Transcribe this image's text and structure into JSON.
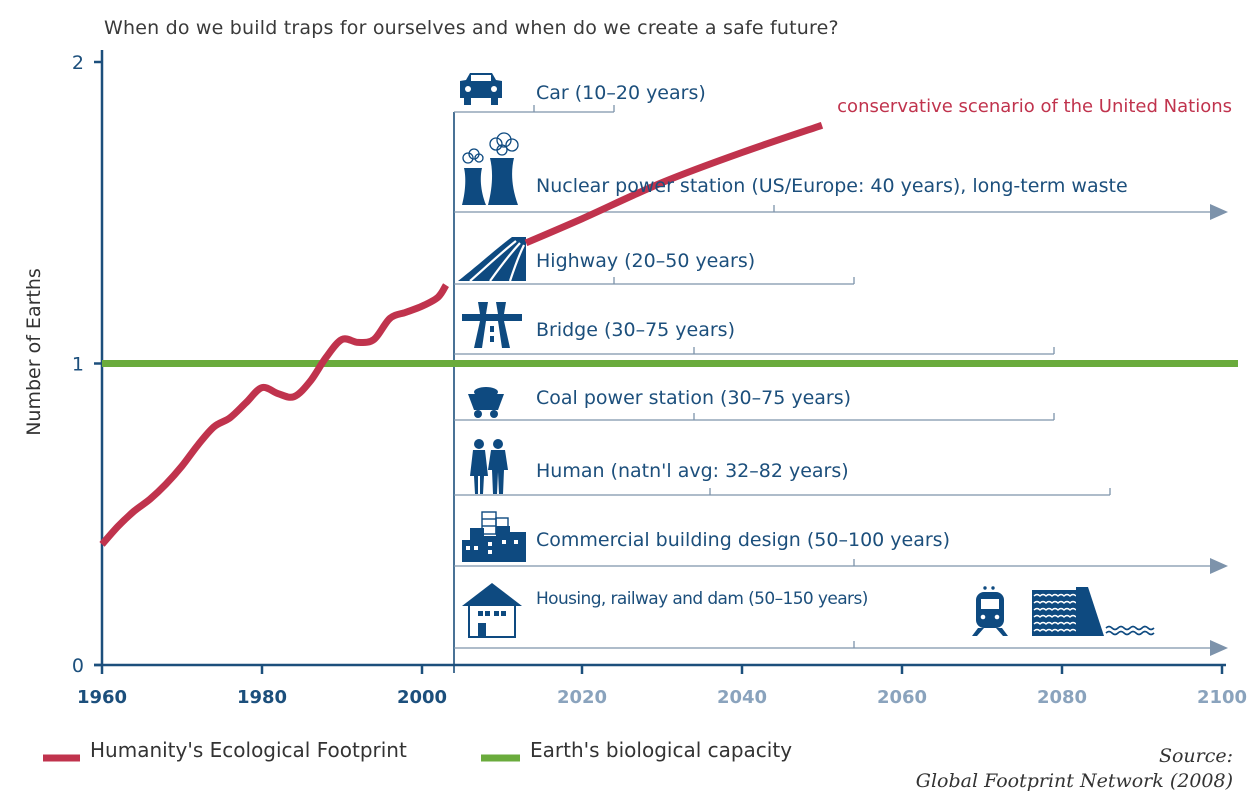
{
  "chart_data": {
    "type": "line",
    "title": "When do we build traps for ourselves and when do we create a safe future?",
    "ylabel": "Number of Earths",
    "xlabel": "",
    "xlim": [
      1960,
      2100
    ],
    "ylim": [
      0,
      2
    ],
    "x_ticks": [
      "1960",
      "1980",
      "2000",
      "2020",
      "2040",
      "2060",
      "2080",
      "2100"
    ],
    "y_ticks": [
      "0",
      "1",
      "2"
    ],
    "grid": false,
    "series": [
      {
        "name": "Humanity's Ecological Footprint",
        "color": "#c0334d",
        "x": [
          1960,
          1962,
          1964,
          1966,
          1968,
          1970,
          1972,
          1974,
          1976,
          1978,
          1980,
          1982,
          1984,
          1986,
          1988,
          1990,
          1992,
          1994,
          1996,
          1998,
          2000,
          2002,
          2003
        ],
        "y": [
          0.4,
          0.46,
          0.51,
          0.55,
          0.6,
          0.66,
          0.73,
          0.79,
          0.82,
          0.87,
          0.92,
          0.9,
          0.89,
          0.94,
          1.02,
          1.08,
          1.07,
          1.08,
          1.15,
          1.17,
          1.19,
          1.22,
          1.26
        ]
      },
      {
        "name": "conservative scenario of the United Nations",
        "color": "#c0334d",
        "x": [
          2013,
          2020,
          2030,
          2040,
          2050
        ],
        "y": [
          1.4,
          1.48,
          1.6,
          1.7,
          1.79
        ]
      },
      {
        "name": "Earth's biological capacity",
        "color": "#6aab3c",
        "x": [
          1960,
          2100
        ],
        "y": [
          1,
          1
        ]
      }
    ],
    "start_year": 2004,
    "lifespans": [
      {
        "label": "Car (10–20 years)",
        "icon": "car-icon",
        "min_years": 10,
        "max_years": 20,
        "open_ended": false
      },
      {
        "label": "Nuclear power station (US/Europe: 40 years), long-term waste",
        "icon": "nuclear-plant-icon",
        "min_years": 40,
        "max_years": null,
        "open_ended": true
      },
      {
        "label": "Highway (20–50 years)",
        "icon": "highway-icon",
        "min_years": 20,
        "max_years": 50,
        "open_ended": false
      },
      {
        "label": "Bridge (30–75 years)",
        "icon": "bridge-icon",
        "min_years": 30,
        "max_years": 75,
        "open_ended": false
      },
      {
        "label": "Coal power station (30–75 years)",
        "icon": "coal-cart-icon",
        "min_years": 30,
        "max_years": 75,
        "open_ended": false
      },
      {
        "label": "Human (natn'l avg: 32–82 years)",
        "icon": "people-icon",
        "min_years": 32,
        "max_years": 82,
        "open_ended": false
      },
      {
        "label": "Commercial building design (50–100 years)",
        "icon": "buildings-icon",
        "min_years": 50,
        "max_years": 100,
        "open_ended": true
      },
      {
        "label": "Housing, railway and dam (50–150 years)",
        "icon": "house-icon",
        "min_years": 50,
        "max_years": 150,
        "open_ended": true
      }
    ],
    "annotation": "conservative scenario of the United Nations",
    "legend": [
      {
        "label": "Humanity's Ecological Footprint",
        "color": "#c0334d"
      },
      {
        "label": "Earth's biological capacity",
        "color": "#6aab3c"
      }
    ],
    "legend_position": "bottom-left",
    "source_label": "Source:",
    "source": "Global Footprint Network (2008)"
  },
  "colors": {
    "axis": "#1c4f7c",
    "icon": "#0e4a80",
    "bracket": "#7d93ab",
    "future_tick": "#8aa3bd"
  }
}
